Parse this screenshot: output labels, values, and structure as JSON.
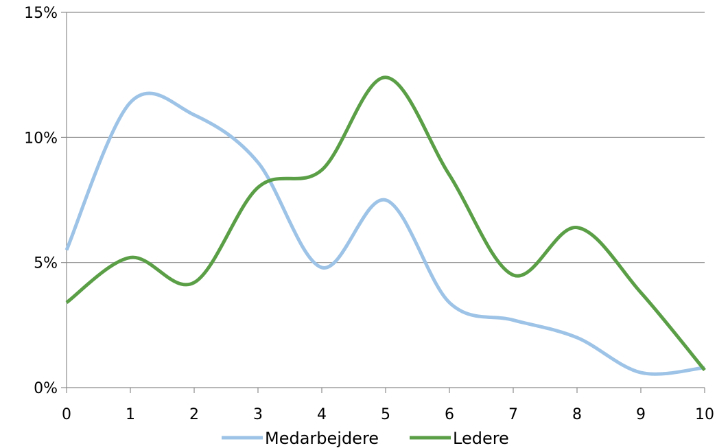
{
  "chart_data": {
    "type": "line",
    "title": "",
    "xlabel": "",
    "ylabel": "",
    "x": [
      0,
      1,
      2,
      3,
      4,
      5,
      6,
      7,
      8,
      9,
      10
    ],
    "xlim": [
      0,
      10
    ],
    "ylim": [
      0,
      15
    ],
    "y_unit": "%",
    "x_tick_labels": [
      "0",
      "1",
      "2",
      "3",
      "4",
      "5",
      "6",
      "7",
      "8",
      "9",
      "10"
    ],
    "y_tick_labels": [
      "0%",
      "5%",
      "10%",
      "15%"
    ],
    "y_tick_values": [
      0,
      5,
      10,
      15
    ],
    "grid": "horizontal",
    "smoothed": true,
    "legend_position": "bottom",
    "series": [
      {
        "name": "Medarbejdere",
        "color": "#9DC3E6",
        "values": [
          5.5,
          11.4,
          10.9,
          9.0,
          4.8,
          7.5,
          3.4,
          2.7,
          2.0,
          0.6,
          0.8
        ]
      },
      {
        "name": "Ledere",
        "color": "#5A9E46",
        "values": [
          3.4,
          5.2,
          4.2,
          8.0,
          8.7,
          12.4,
          8.5,
          4.5,
          6.4,
          3.8,
          0.7
        ]
      }
    ]
  }
}
